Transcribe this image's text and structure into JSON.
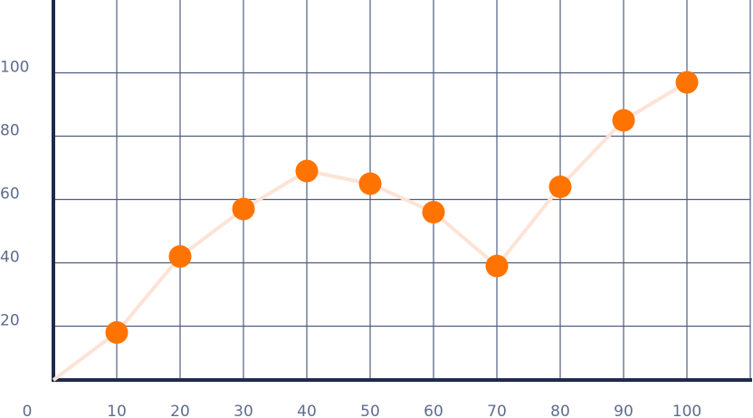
{
  "chart_data": {
    "type": "line",
    "x": [
      0,
      10,
      20,
      30,
      40,
      50,
      60,
      70,
      80,
      90,
      100
    ],
    "series": [
      {
        "color": "#ff7300",
        "line_color": "#fde3d6",
        "values": [
          3,
          18,
          42,
          57,
          69,
          65,
          56,
          39,
          64,
          85,
          97
        ]
      }
    ],
    "xlim": [
      0,
      110
    ],
    "ylim": [
      3,
      123
    ],
    "xticks": [
      0,
      10,
      20,
      30,
      40,
      50,
      60,
      70,
      80,
      90,
      100
    ],
    "yticks": [
      20,
      40,
      60,
      80,
      100
    ],
    "grid": true
  }
}
